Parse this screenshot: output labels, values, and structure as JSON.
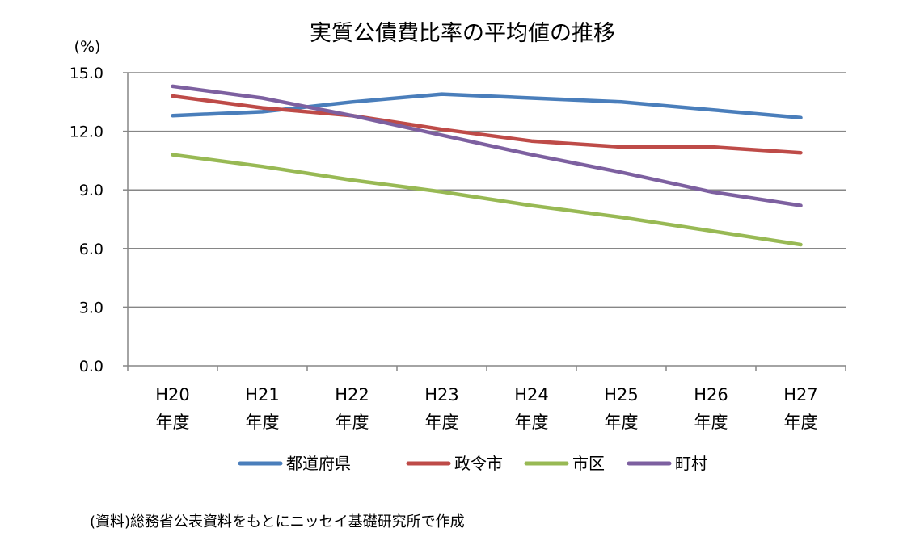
{
  "chart_data": {
    "type": "line",
    "title": "実質公債費比率の平均値の推移",
    "ylabel": "(%)",
    "xlabel": "",
    "ylim": [
      0,
      15
    ],
    "yticks": [
      "0.0",
      "3.0",
      "6.0",
      "9.0",
      "12.0",
      "15.0"
    ],
    "categories": [
      {
        "line1": "H20",
        "line2": "年度"
      },
      {
        "line1": "H21",
        "line2": "年度"
      },
      {
        "line1": "H22",
        "line2": "年度"
      },
      {
        "line1": "H23",
        "line2": "年度"
      },
      {
        "line1": "H24",
        "line2": "年度"
      },
      {
        "line1": "H25",
        "line2": "年度"
      },
      {
        "line1": "H26",
        "line2": "年度"
      },
      {
        "line1": "H27",
        "line2": "年度"
      }
    ],
    "series": [
      {
        "name": "都道府県",
        "color": "#4a7ebb",
        "values": [
          12.8,
          13.0,
          13.5,
          13.9,
          13.7,
          13.5,
          13.1,
          12.7
        ]
      },
      {
        "name": "政令市",
        "color": "#be4b48",
        "values": [
          13.8,
          13.2,
          12.8,
          12.1,
          11.5,
          11.2,
          11.2,
          10.9
        ]
      },
      {
        "name": "市区",
        "color": "#98b954",
        "values": [
          10.8,
          10.2,
          9.5,
          8.9,
          8.2,
          7.6,
          6.9,
          6.2
        ]
      },
      {
        "name": "町村",
        "color": "#7d60a0",
        "values": [
          14.3,
          13.7,
          12.8,
          11.8,
          10.8,
          9.9,
          8.9,
          8.2
        ]
      }
    ],
    "grid": true,
    "legend": "bottom"
  },
  "source": "(資料)総務省公表資料をもとにニッセイ基礎研究所で作成"
}
